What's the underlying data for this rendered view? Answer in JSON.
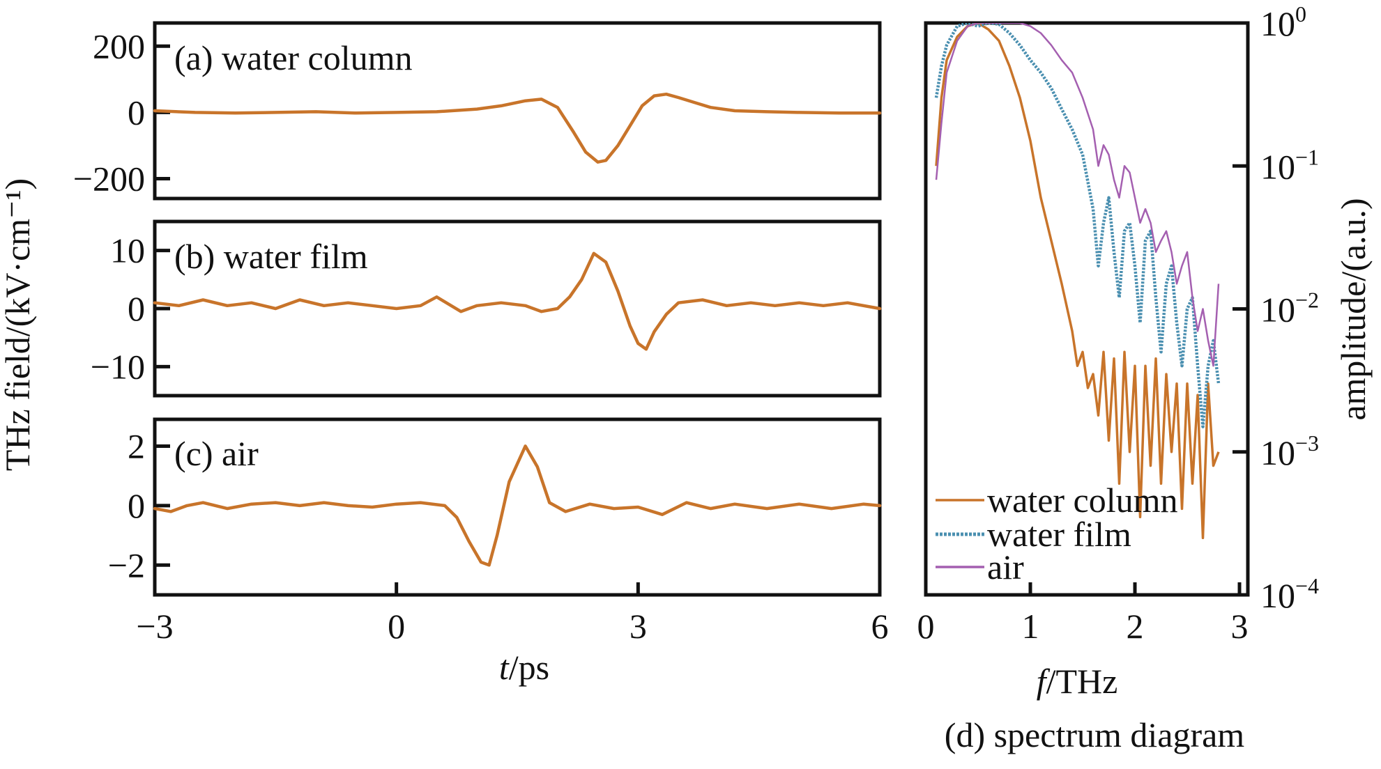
{
  "chart_data": [
    {
      "type": "line",
      "panel_label": "(a) water column",
      "x_range": [
        -3,
        6
      ],
      "ylim": [
        -260,
        270
      ],
      "yticks": [
        200,
        0,
        -200
      ],
      "ytick_labels": [
        "200",
        "0",
        "−200"
      ],
      "series": [
        {
          "color": "#c8742a",
          "x": [
            -3,
            -2.5,
            -2,
            -1.5,
            -1,
            -0.5,
            0,
            0.5,
            1,
            1.3,
            1.6,
            1.8,
            2.0,
            2.2,
            2.35,
            2.5,
            2.6,
            2.75,
            2.9,
            3.05,
            3.2,
            3.35,
            3.5,
            3.7,
            3.9,
            4.2,
            4.6,
            5,
            5.5,
            6
          ],
          "y": [
            5,
            0,
            -2,
            0,
            2,
            -2,
            0,
            2,
            10,
            20,
            35,
            40,
            15,
            -60,
            -120,
            -150,
            -145,
            -100,
            -40,
            20,
            50,
            55,
            45,
            30,
            15,
            5,
            2,
            0,
            -2,
            -2
          ]
        }
      ]
    },
    {
      "type": "line",
      "panel_label": "(b) water film",
      "x_range": [
        -3,
        6
      ],
      "ylim": [
        -15,
        15
      ],
      "yticks": [
        10,
        0,
        -10
      ],
      "ytick_labels": [
        "10",
        "0",
        "−10"
      ],
      "series": [
        {
          "color": "#c8742a",
          "x": [
            -3,
            -2.7,
            -2.4,
            -2.1,
            -1.8,
            -1.5,
            -1.2,
            -0.9,
            -0.6,
            -0.3,
            0,
            0.3,
            0.5,
            0.8,
            1.0,
            1.3,
            1.6,
            1.8,
            2.0,
            2.15,
            2.3,
            2.45,
            2.6,
            2.75,
            2.9,
            3.0,
            3.1,
            3.2,
            3.35,
            3.5,
            3.8,
            4.1,
            4.4,
            4.7,
            5.0,
            5.3,
            5.6,
            6
          ],
          "y": [
            1,
            0.5,
            1.5,
            0.5,
            1,
            0,
            1.5,
            0.5,
            1,
            0.5,
            0,
            0.5,
            2,
            -0.5,
            0.5,
            1,
            0.5,
            -0.5,
            0,
            2,
            5,
            9.5,
            8,
            3,
            -3,
            -6,
            -7,
            -4,
            -1,
            1,
            1.5,
            0.5,
            1,
            0.5,
            1,
            0.5,
            1,
            0
          ]
        }
      ]
    },
    {
      "type": "line",
      "panel_label": "(c) air",
      "x_range": [
        -3,
        6
      ],
      "ylim": [
        -3,
        2.9
      ],
      "yticks": [
        2,
        0,
        -2
      ],
      "ytick_labels": [
        "2",
        "0",
        "−2"
      ],
      "series": [
        {
          "color": "#c8742a",
          "x": [
            -3,
            -2.8,
            -2.6,
            -2.4,
            -2.1,
            -1.8,
            -1.5,
            -1.2,
            -0.9,
            -0.6,
            -0.3,
            0,
            0.3,
            0.6,
            0.75,
            0.9,
            1.05,
            1.15,
            1.25,
            1.4,
            1.6,
            1.75,
            1.9,
            2.1,
            2.4,
            2.7,
            3.0,
            3.3,
            3.6,
            3.9,
            4.2,
            4.6,
            5.0,
            5.4,
            5.8,
            6
          ],
          "y": [
            -0.1,
            -0.2,
            0,
            0.1,
            -0.1,
            0.05,
            0.1,
            0,
            0.1,
            0,
            -0.05,
            0.05,
            0.1,
            0,
            -0.4,
            -1.2,
            -1.9,
            -2.0,
            -1.0,
            0.8,
            2.0,
            1.3,
            0.1,
            -0.2,
            0.05,
            -0.1,
            -0.05,
            -0.3,
            0.1,
            -0.1,
            0.05,
            -0.1,
            0.05,
            -0.1,
            0.05,
            0
          ]
        }
      ]
    },
    {
      "type": "line",
      "panel_label": "(d) spectrum diagram",
      "xlabel": "f/THz",
      "ylabel": "amplitude/(a.u.)",
      "xlim": [
        0,
        3
      ],
      "xticks": [
        0,
        1,
        2,
        3
      ],
      "xtick_labels": [
        "0",
        "1",
        "2",
        "3"
      ],
      "yscale": "log",
      "ylim": [
        0.0001,
        1
      ],
      "yticks": [
        1,
        0.1,
        0.01,
        0.001,
        0.0001
      ],
      "ytick_labels": [
        {
          "base": "10",
          "exp": "0"
        },
        {
          "base": "10",
          "exp": "−1"
        },
        {
          "base": "10",
          "exp": "−2"
        },
        {
          "base": "10",
          "exp": "−3"
        },
        {
          "base": "10",
          "exp": "−4"
        }
      ],
      "legend_position": "bottom-left",
      "series": [
        {
          "name": "water column",
          "color": "#c8742a",
          "x": [
            0.1,
            0.15,
            0.2,
            0.3,
            0.4,
            0.5,
            0.6,
            0.7,
            0.8,
            0.9,
            1.0,
            1.1,
            1.2,
            1.3,
            1.4,
            1.45,
            1.5,
            1.55,
            1.6,
            1.65,
            1.7,
            1.75,
            1.8,
            1.85,
            1.9,
            1.95,
            2.0,
            2.05,
            2.1,
            2.15,
            2.2,
            2.25,
            2.3,
            2.35,
            2.4,
            2.45,
            2.5,
            2.55,
            2.6,
            2.65,
            2.7,
            2.75,
            2.8
          ],
          "y": [
            0.1,
            0.3,
            0.55,
            0.8,
            0.95,
            1.0,
            0.9,
            0.75,
            0.5,
            0.3,
            0.15,
            0.06,
            0.03,
            0.015,
            0.007,
            0.004,
            0.005,
            0.0028,
            0.0035,
            0.0018,
            0.005,
            0.0012,
            0.0045,
            0.0006,
            0.005,
            0.001,
            0.004,
            0.00035,
            0.004,
            0.0008,
            0.0045,
            0.0006,
            0.0035,
            0.001,
            0.003,
            0.0004,
            0.003,
            0.0006,
            0.0025,
            0.00025,
            0.003,
            0.0008,
            0.001
          ]
        },
        {
          "name": "water film",
          "color": "#4a8fb0",
          "x": [
            0.1,
            0.15,
            0.2,
            0.3,
            0.4,
            0.5,
            0.6,
            0.7,
            0.8,
            0.9,
            1.0,
            1.1,
            1.2,
            1.3,
            1.4,
            1.5,
            1.6,
            1.65,
            1.7,
            1.75,
            1.8,
            1.85,
            1.9,
            1.95,
            2.0,
            2.05,
            2.1,
            2.15,
            2.2,
            2.25,
            2.3,
            2.35,
            2.4,
            2.45,
            2.5,
            2.55,
            2.6,
            2.65,
            2.7,
            2.75,
            2.8
          ],
          "y": [
            0.3,
            0.5,
            0.7,
            0.95,
            1.0,
            0.95,
            1.0,
            0.98,
            0.85,
            0.7,
            0.55,
            0.45,
            0.35,
            0.25,
            0.18,
            0.12,
            0.05,
            0.02,
            0.04,
            0.06,
            0.025,
            0.012,
            0.035,
            0.04,
            0.02,
            0.008,
            0.03,
            0.035,
            0.012,
            0.005,
            0.015,
            0.02,
            0.008,
            0.004,
            0.01,
            0.012,
            0.004,
            0.0015,
            0.004,
            0.006,
            0.003
          ]
        },
        {
          "name": "air",
          "color": "#a45fb0",
          "x": [
            0.1,
            0.15,
            0.2,
            0.3,
            0.4,
            0.5,
            0.6,
            0.7,
            0.8,
            0.9,
            1.0,
            1.1,
            1.2,
            1.3,
            1.4,
            1.5,
            1.6,
            1.65,
            1.7,
            1.75,
            1.8,
            1.85,
            1.9,
            1.95,
            2.0,
            2.05,
            2.1,
            2.15,
            2.2,
            2.25,
            2.3,
            2.35,
            2.4,
            2.45,
            2.5,
            2.55,
            2.6,
            2.65,
            2.7,
            2.75,
            2.8
          ],
          "y": [
            0.08,
            0.2,
            0.45,
            0.75,
            0.95,
            1.0,
            1.0,
            1.0,
            1.0,
            1.0,
            0.95,
            0.85,
            0.7,
            0.55,
            0.45,
            0.3,
            0.18,
            0.1,
            0.14,
            0.12,
            0.08,
            0.06,
            0.1,
            0.09,
            0.06,
            0.04,
            0.05,
            0.04,
            0.025,
            0.03,
            0.035,
            0.025,
            0.015,
            0.02,
            0.025,
            0.012,
            0.007,
            0.01,
            0.006,
            0.004,
            0.015
          ]
        }
      ]
    }
  ],
  "time_axis": {
    "xlabel_var": "t",
    "xlabel_unit": "/ps",
    "xticks": [
      -3,
      0,
      3,
      6
    ],
    "xtick_labels": [
      "−3",
      "0",
      "3",
      "6"
    ]
  },
  "shared_ylabel": "THz field/(kV·cm⁻¹)"
}
